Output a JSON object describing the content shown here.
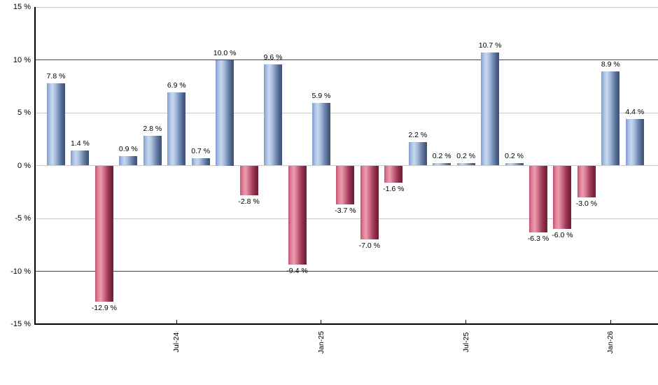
{
  "chart_data": {
    "type": "bar",
    "title": "",
    "xlabel": "",
    "ylabel": "",
    "ylim": [
      -15,
      15
    ],
    "grid": "on",
    "legend": null,
    "y_ticks": [
      {
        "value": 15,
        "label": "15 %",
        "line": "minor"
      },
      {
        "value": 10,
        "label": "10 %",
        "line": "major"
      },
      {
        "value": 5,
        "label": "5 %",
        "line": "minor"
      },
      {
        "value": 0,
        "label": "0 %",
        "line": "minor"
      },
      {
        "value": -5,
        "label": "-5 %",
        "line": "minor"
      },
      {
        "value": -10,
        "label": "-10 %",
        "line": "major"
      },
      {
        "value": -15,
        "label": "-15 %",
        "line": "axis"
      }
    ],
    "x_ticks": [
      {
        "bar_index": 5,
        "label": "Jul-24"
      },
      {
        "bar_index": 11,
        "label": "Jan-25"
      },
      {
        "bar_index": 17,
        "label": "Jul-25"
      },
      {
        "bar_index": 23,
        "label": "Jan-26"
      }
    ],
    "bars": [
      {
        "value": 7.8,
        "label": "7.8 %"
      },
      {
        "value": 1.4,
        "label": "1.4 %"
      },
      {
        "value": -12.9,
        "label": "-12.9 %"
      },
      {
        "value": 0.9,
        "label": "0.9 %"
      },
      {
        "value": 2.8,
        "label": "2.8 %"
      },
      {
        "value": 6.9,
        "label": "6.9 %"
      },
      {
        "value": 0.7,
        "label": "0.7 %"
      },
      {
        "value": 10.0,
        "label": "10.0 %"
      },
      {
        "value": -2.8,
        "label": "-2.8 %"
      },
      {
        "value": 9.6,
        "label": "9.6 %"
      },
      {
        "value": -9.4,
        "label": "-9.4 %"
      },
      {
        "value": 5.9,
        "label": "5.9 %"
      },
      {
        "value": -3.7,
        "label": "-3.7 %"
      },
      {
        "value": -7.0,
        "label": "-7.0 %"
      },
      {
        "value": -1.6,
        "label": "-1.6 %"
      },
      {
        "value": 2.2,
        "label": "2.2 %"
      },
      {
        "value": 0.2,
        "label": "0.2 %"
      },
      {
        "value": 0.2,
        "label": "0.2 %"
      },
      {
        "value": 10.7,
        "label": "10.7 %"
      },
      {
        "value": 0.2,
        "label": "0.2 %"
      },
      {
        "value": -6.3,
        "label": "-6.3 %"
      },
      {
        "value": -6.0,
        "label": "-6.0 %"
      },
      {
        "value": -3.0,
        "label": "-3.0 %"
      },
      {
        "value": 8.9,
        "label": "8.9 %"
      },
      {
        "value": 4.4,
        "label": "4.4 %"
      }
    ],
    "colors": {
      "positive_bar_light": "#c9d8f0",
      "positive_bar_mid": "#7c9bd1",
      "positive_bar_dark": "#3e527a",
      "negative_bar_light": "#ec9cae",
      "negative_bar_mid": "#c4506e",
      "negative_bar_dark": "#6f2038",
      "major_gridline": "#007500",
      "minor_gridline": "#c9c9c9",
      "axis": "#000000",
      "background": "#ffffff",
      "label_text": "#000000"
    }
  }
}
